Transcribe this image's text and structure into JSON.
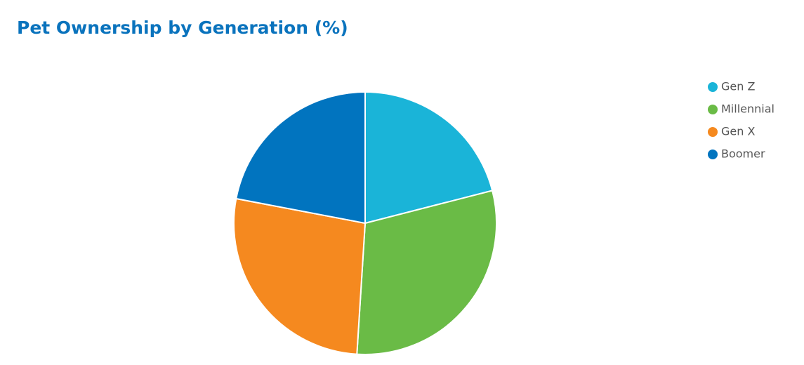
{
  "chart_data": {
    "type": "pie",
    "title": "Pet Ownership by Generation (%)",
    "categories": [
      "Gen Z",
      "Millennial",
      "Gen X",
      "Boomer"
    ],
    "values": [
      21,
      30,
      27,
      22
    ],
    "colors": [
      "#1ab4d8",
      "#6abb46",
      "#f5891f",
      "#0174bf"
    ],
    "legend": "right"
  }
}
